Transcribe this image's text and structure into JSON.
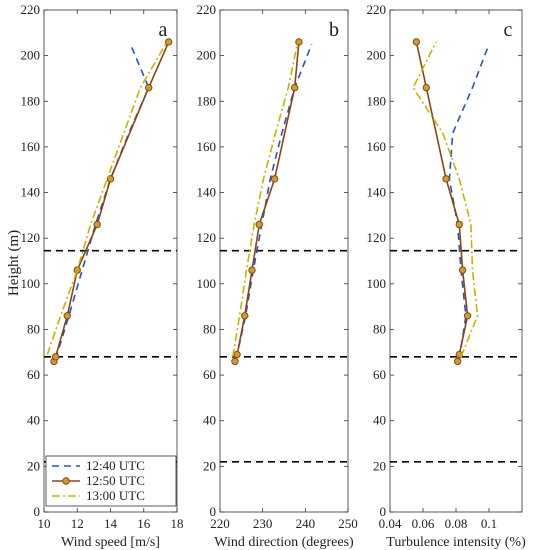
{
  "figure": {
    "y_axis_label": "Height (m)",
    "legend": {
      "items": [
        {
          "label": "12:40 UTC",
          "series": 0
        },
        {
          "label": "12:50 UTC",
          "series": 1
        },
        {
          "label": "13:00 UTC",
          "series": 2
        }
      ]
    }
  },
  "series_styles": [
    {
      "color": "#2a52be",
      "dash": "7,5",
      "marker": "none"
    },
    {
      "color": "#8b4513",
      "dash": "",
      "marker": "circle",
      "marker_fill": "#c8a032"
    },
    {
      "color": "#c8b400",
      "dash": "8,3,2,3",
      "marker": "none"
    }
  ],
  "reference_line_color": "#000000",
  "chart_data": [
    {
      "type": "line",
      "panel": "a",
      "xlabel": "Wind speed [m/s]",
      "ylabel": "Height (m)",
      "xlim": [
        10,
        18
      ],
      "ylim": [
        0,
        220
      ],
      "xticks": [
        10,
        12,
        14,
        16,
        18
      ],
      "yticks": [
        0,
        20,
        40,
        60,
        80,
        100,
        120,
        140,
        160,
        180,
        200,
        220
      ],
      "reference_lines_y": [
        22,
        68,
        114.5
      ],
      "series": [
        {
          "name": "12:40 UTC",
          "points": [
            [
              10.7,
              67
            ],
            [
              11.5,
              86
            ],
            [
              12.3,
              106
            ],
            [
              13.1,
              126
            ],
            [
              14.0,
              146
            ],
            [
              15.1,
              166
            ],
            [
              16.3,
              186
            ],
            [
              15.2,
              205
            ]
          ]
        },
        {
          "name": "12:50 UTC",
          "points": [
            [
              10.6,
              66
            ],
            [
              10.7,
              68
            ],
            [
              11.4,
              86
            ],
            [
              12.0,
              106
            ],
            [
              13.2,
              126
            ],
            [
              14.0,
              146
            ],
            [
              16.3,
              186
            ],
            [
              17.5,
              206
            ]
          ]
        },
        {
          "name": "13:00 UTC",
          "points": [
            [
              10.2,
              69
            ],
            [
              11.0,
              86
            ],
            [
              12.0,
              106
            ],
            [
              12.8,
              126
            ],
            [
              13.8,
              146
            ],
            [
              14.8,
              166
            ],
            [
              15.8,
              186
            ],
            [
              17.4,
              206
            ]
          ]
        }
      ]
    },
    {
      "type": "line",
      "panel": "b",
      "xlabel": "Wind direction (degrees)",
      "ylabel": "",
      "xlim": [
        220,
        250
      ],
      "ylim": [
        0,
        220
      ],
      "xticks": [
        220,
        230,
        240,
        250
      ],
      "yticks": [
        0,
        20,
        40,
        60,
        80,
        100,
        120,
        140,
        160,
        180,
        200,
        220
      ],
      "reference_lines_y": [
        22,
        68,
        114.5
      ],
      "series": [
        {
          "name": "12:40 UTC",
          "points": [
            [
              223.8,
              67
            ],
            [
              226.0,
              86
            ],
            [
              227.8,
              106
            ],
            [
              229.8,
              126
            ],
            [
              231.8,
              146
            ],
            [
              234.5,
              166
            ],
            [
              237.5,
              186
            ],
            [
              241.5,
              205
            ]
          ]
        },
        {
          "name": "12:50 UTC",
          "points": [
            [
              223.5,
              66
            ],
            [
              224.0,
              69
            ],
            [
              225.8,
              86
            ],
            [
              227.5,
              106
            ],
            [
              229.2,
              126
            ],
            [
              232.8,
              146
            ],
            [
              237.5,
              186
            ],
            [
              238.5,
              206
            ]
          ]
        },
        {
          "name": "13:00 UTC",
          "points": [
            [
              223.0,
              68
            ],
            [
              224.6,
              86
            ],
            [
              226.2,
              106
            ],
            [
              228.0,
              126
            ],
            [
              230.2,
              146
            ],
            [
              233.0,
              166
            ],
            [
              236.0,
              186
            ],
            [
              238.2,
              206
            ]
          ]
        }
      ]
    },
    {
      "type": "line",
      "panel": "c",
      "xlabel": "Turbulence intensity (%)",
      "ylabel": "",
      "xlim": [
        0.04,
        0.12
      ],
      "ylim": [
        0,
        220
      ],
      "xticks": [
        0.04,
        0.06,
        0.08,
        0.1
      ],
      "xtick_labels": [
        "0.04",
        "0.06",
        "0.08",
        "0.1"
      ],
      "yticks": [
        0,
        20,
        40,
        60,
        80,
        100,
        120,
        140,
        160,
        180,
        200,
        220
      ],
      "reference_lines_y": [
        22,
        68,
        114.5
      ],
      "series": [
        {
          "name": "12:40 UTC",
          "points": [
            [
              0.082,
              67
            ],
            [
              0.086,
              86
            ],
            [
              0.083,
              106
            ],
            [
              0.081,
              126
            ],
            [
              0.076,
              146
            ],
            [
              0.078,
              166
            ],
            [
              0.09,
              186
            ],
            [
              0.1,
              205
            ]
          ]
        },
        {
          "name": "12:50 UTC",
          "points": [
            [
              0.081,
              66
            ],
            [
              0.082,
              69
            ],
            [
              0.087,
              86
            ],
            [
              0.084,
              106
            ],
            [
              0.082,
              126
            ],
            [
              0.074,
              146
            ],
            [
              0.062,
              186
            ],
            [
              0.056,
              206
            ]
          ]
        },
        {
          "name": "13:00 UTC",
          "points": [
            [
              0.083,
              68
            ],
            [
              0.093,
              86
            ],
            [
              0.09,
              106
            ],
            [
              0.089,
              126
            ],
            [
              0.082,
              146
            ],
            [
              0.072,
              166
            ],
            [
              0.054,
              186
            ],
            [
              0.068,
              206
            ]
          ]
        }
      ]
    }
  ]
}
